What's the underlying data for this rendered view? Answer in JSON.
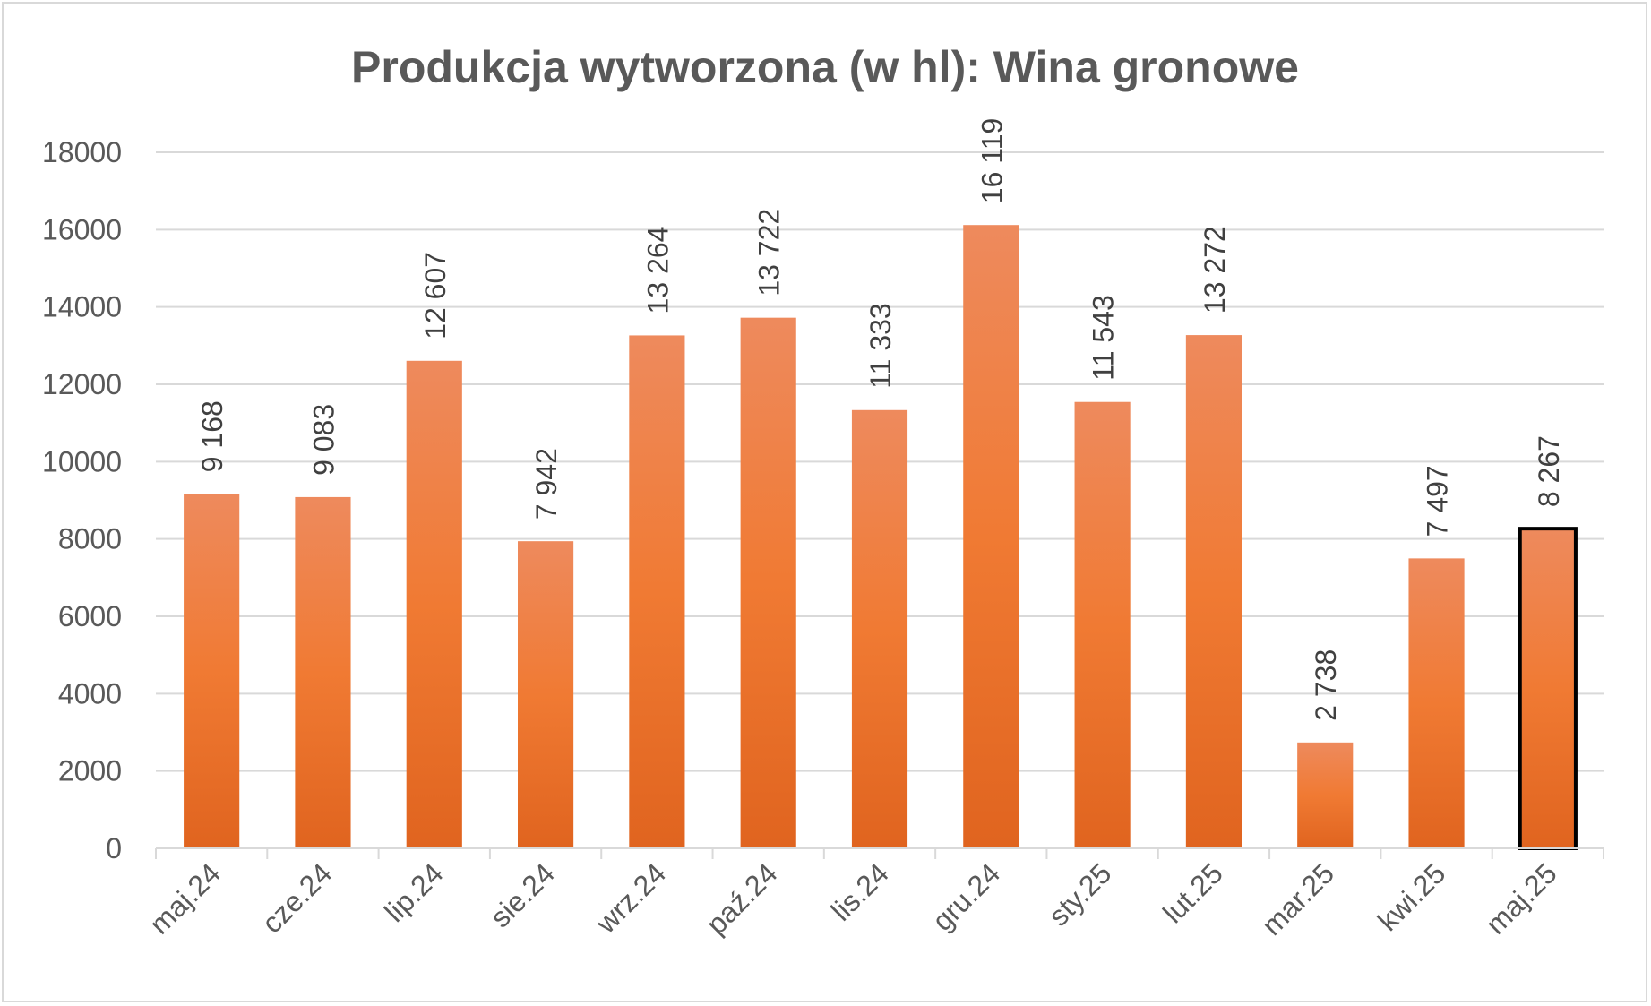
{
  "chart_data": {
    "type": "bar",
    "title": "Produkcja wytworzona (w hl): Wina gronowe",
    "categories": [
      "maj.24",
      "cze.24",
      "lip.24",
      "sie.24",
      "wrz.24",
      "paź.24",
      "lis.24",
      "gru.24",
      "sty.25",
      "lut.25",
      "mar.25",
      "kwi.25",
      "maj.25"
    ],
    "values": [
      9168,
      9083,
      12607,
      7942,
      13264,
      13722,
      11333,
      16119,
      11543,
      13272,
      2738,
      7497,
      8267
    ],
    "data_labels": [
      "9 168",
      "9 083",
      "12 607",
      "7 942",
      "13 264",
      "13 722",
      "11 333",
      "16 119",
      "11 543",
      "13 272",
      "2 738",
      "7 497",
      "8 267"
    ],
    "highlighted_category": "maj.25",
    "yticks": [
      "0",
      "2000",
      "4000",
      "6000",
      "8000",
      "10000",
      "12000",
      "14000",
      "16000",
      "18000"
    ],
    "ylim": [
      0,
      18000
    ],
    "grid": true,
    "legend": "none",
    "colors": {
      "bar_top": "#ee8a5d",
      "bar_mid": "#f07a33",
      "bar_bottom": "#e0641f",
      "highlight_outline": "#000000",
      "grid": "#d9d9d9",
      "text": "#595959"
    }
  }
}
